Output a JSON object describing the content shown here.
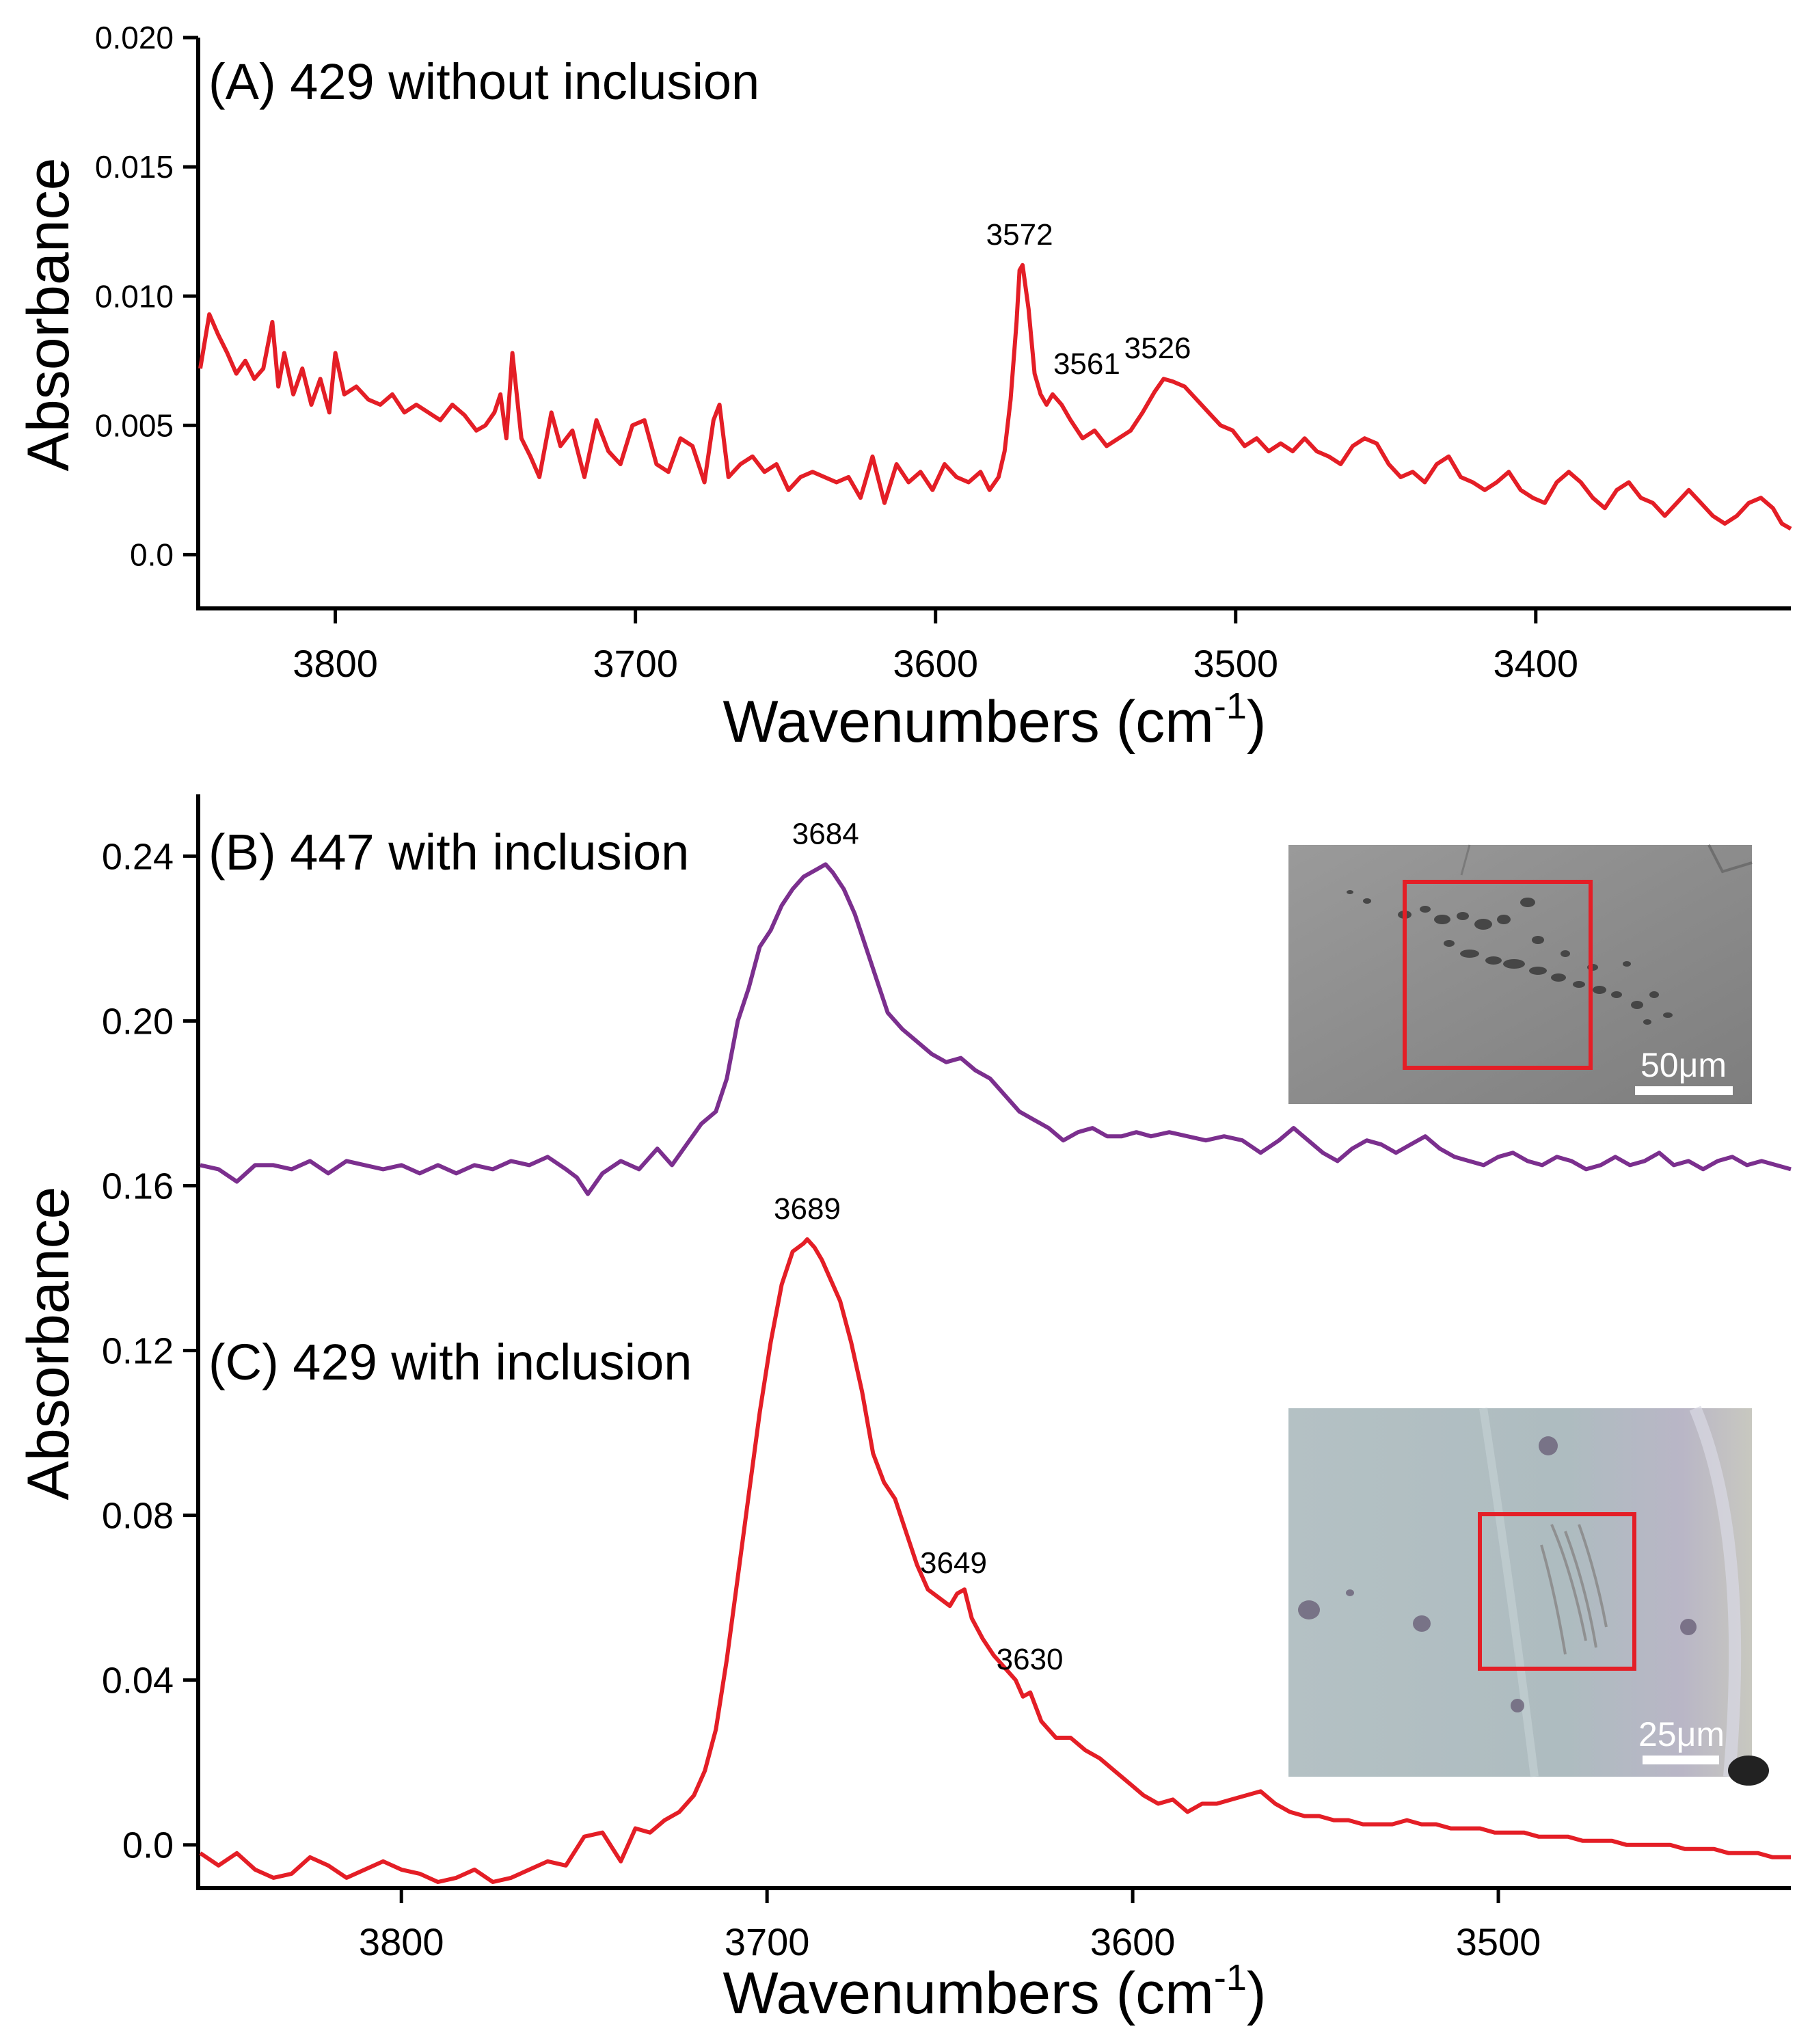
{
  "colors": {
    "red": "#e41e26",
    "purple": "#7b2f8e",
    "axis": "#000000",
    "inset_box": "#e41e26"
  },
  "chart_data": [
    {
      "type": "line",
      "panel": "A",
      "title": "(A) 429 without inclusion",
      "xlabel": "Wavenumbers (cm",
      "xlabel_sup": "-1",
      "xlabel_close": ")",
      "ylabel": "Absorbance",
      "xlim": [
        3845,
        3315
      ],
      "ylim": [
        -0.002,
        0.02
      ],
      "xticks": [
        3800,
        3700,
        3600,
        3500,
        3400
      ],
      "xtick_labels": [
        "3800",
        "3700",
        "3600",
        "3500",
        "3400"
      ],
      "yticks": [
        0,
        0.005,
        0.01,
        0.015,
        0.02
      ],
      "ytick_labels": [
        "0.0",
        "0.005",
        "0.010",
        "0.015",
        "0.020"
      ],
      "grid": false,
      "series": [
        {
          "color": "#e41e26",
          "x": [
            3845,
            3842,
            3839,
            3836,
            3833,
            3830,
            3827,
            3824,
            3821,
            3819,
            3817,
            3814,
            3811,
            3808,
            3805,
            3802,
            3800,
            3797,
            3793,
            3789,
            3785,
            3781,
            3777,
            3773,
            3769,
            3765,
            3761,
            3757,
            3753,
            3750,
            3747,
            3745,
            3743,
            3741,
            3738,
            3735,
            3732,
            3728,
            3725,
            3721,
            3717,
            3713,
            3709,
            3705,
            3701,
            3697,
            3693,
            3689,
            3685,
            3681,
            3677,
            3674,
            3672,
            3669,
            3665,
            3661,
            3657,
            3653,
            3649,
            3645,
            3641,
            3637,
            3633,
            3629,
            3625,
            3621,
            3617,
            3613,
            3609,
            3605,
            3601,
            3597,
            3593,
            3589,
            3585,
            3582,
            3579,
            3577,
            3575,
            3573,
            3572,
            3571,
            3569,
            3567,
            3565,
            3563,
            3561,
            3558,
            3555,
            3551,
            3547,
            3543,
            3539,
            3535,
            3531,
            3527,
            3524,
            3521,
            3517,
            3513,
            3509,
            3505,
            3501,
            3497,
            3493,
            3489,
            3485,
            3481,
            3477,
            3473,
            3469,
            3465,
            3461,
            3457,
            3453,
            3449,
            3445,
            3441,
            3437,
            3433,
            3429,
            3425,
            3421,
            3417,
            3413,
            3409,
            3405,
            3401,
            3397,
            3393,
            3389,
            3385,
            3381,
            3377,
            3373,
            3369,
            3365,
            3361,
            3357,
            3353,
            3349,
            3345,
            3341,
            3337,
            3333,
            3329,
            3325,
            3321,
            3318,
            3315
          ],
          "y": [
            0.0072,
            0.0093,
            0.0085,
            0.0078,
            0.007,
            0.0075,
            0.0068,
            0.0072,
            0.009,
            0.0065,
            0.0078,
            0.0062,
            0.0072,
            0.0058,
            0.0068,
            0.0055,
            0.0078,
            0.0062,
            0.0065,
            0.006,
            0.0058,
            0.0062,
            0.0055,
            0.0058,
            0.0055,
            0.0052,
            0.0058,
            0.0054,
            0.0048,
            0.005,
            0.0055,
            0.0062,
            0.0045,
            0.0078,
            0.0045,
            0.0038,
            0.003,
            0.0055,
            0.0042,
            0.0048,
            0.003,
            0.0052,
            0.004,
            0.0035,
            0.005,
            0.0052,
            0.0035,
            0.0032,
            0.0045,
            0.0042,
            0.0028,
            0.0052,
            0.0058,
            0.003,
            0.0035,
            0.0038,
            0.0032,
            0.0035,
            0.0025,
            0.003,
            0.0032,
            0.003,
            0.0028,
            0.003,
            0.0022,
            0.0038,
            0.002,
            0.0035,
            0.0028,
            0.0032,
            0.0025,
            0.0035,
            0.003,
            0.0028,
            0.0032,
            0.0025,
            0.003,
            0.004,
            0.006,
            0.009,
            0.011,
            0.0112,
            0.0095,
            0.007,
            0.0062,
            0.0058,
            0.0062,
            0.0058,
            0.0052,
            0.0045,
            0.0048,
            0.0042,
            0.0045,
            0.0048,
            0.0055,
            0.0063,
            0.0068,
            0.0067,
            0.0065,
            0.006,
            0.0055,
            0.005,
            0.0048,
            0.0042,
            0.0045,
            0.004,
            0.0043,
            0.004,
            0.0045,
            0.004,
            0.0038,
            0.0035,
            0.0042,
            0.0045,
            0.0043,
            0.0035,
            0.003,
            0.0032,
            0.0028,
            0.0035,
            0.0038,
            0.003,
            0.0028,
            0.0025,
            0.0028,
            0.0032,
            0.0025,
            0.0022,
            0.002,
            0.0028,
            0.0032,
            0.0028,
            0.0022,
            0.0018,
            0.0025,
            0.0028,
            0.0022,
            0.002,
            0.0015,
            0.002,
            0.0025,
            0.002,
            0.0015,
            0.0012,
            0.0015,
            0.002,
            0.0022,
            0.0018,
            0.0012,
            0.001
          ]
        }
      ],
      "annotations": [
        {
          "x": 3572,
          "y": 0.0112,
          "text": "3572"
        },
        {
          "x": 3561,
          "y": 0.0062,
          "text": "3561"
        },
        {
          "x": 3526,
          "y": 0.0068,
          "text": "3526"
        }
      ]
    },
    {
      "type": "line",
      "panel": "B/C",
      "xlabel": "Wavenumbers (cm",
      "xlabel_sup": "-1",
      "xlabel_close": ")",
      "ylabel": "Absorbance",
      "xlim": [
        3855,
        3420
      ],
      "ylim": [
        -0.01,
        0.255
      ],
      "xticks": [
        3800,
        3700,
        3600,
        3500
      ],
      "xtick_labels": [
        "3800",
        "3700",
        "3600",
        "3500"
      ],
      "yticks": [
        0,
        0.04,
        0.08,
        0.12,
        0.16,
        0.2,
        0.24
      ],
      "ytick_labels": [
        "0.0",
        "0.04",
        "0.08",
        "0.12",
        "0.16",
        "0.20",
        "0.24"
      ],
      "grid": false,
      "series": [
        {
          "name": "(B) 447 with inclusion",
          "color": "#7b2f8e",
          "x": [
            3855,
            3850,
            3845,
            3840,
            3835,
            3830,
            3825,
            3820,
            3815,
            3810,
            3805,
            3800,
            3795,
            3790,
            3785,
            3780,
            3775,
            3770,
            3765,
            3760,
            3755,
            3752,
            3749,
            3745,
            3740,
            3735,
            3730,
            3726,
            3722,
            3718,
            3714,
            3711,
            3708,
            3705,
            3702,
            3699,
            3696,
            3693,
            3690,
            3688,
            3686,
            3684,
            3682,
            3679,
            3676,
            3673,
            3670,
            3667,
            3663,
            3659,
            3655,
            3651,
            3647,
            3643,
            3639,
            3635,
            3631,
            3627,
            3623,
            3619,
            3615,
            3611,
            3607,
            3603,
            3599,
            3595,
            3590,
            3585,
            3580,
            3575,
            3570,
            3565,
            3560,
            3556,
            3552,
            3548,
            3544,
            3540,
            3536,
            3532,
            3528,
            3524,
            3520,
            3516,
            3512,
            3508,
            3504,
            3500,
            3496,
            3492,
            3488,
            3484,
            3480,
            3476,
            3472,
            3468,
            3464,
            3460,
            3456,
            3452,
            3448,
            3444,
            3440,
            3436,
            3432,
            3428,
            3424,
            3420
          ],
          "y": [
            0.165,
            0.164,
            0.161,
            0.165,
            0.165,
            0.164,
            0.166,
            0.163,
            0.166,
            0.165,
            0.164,
            0.165,
            0.163,
            0.165,
            0.163,
            0.165,
            0.164,
            0.166,
            0.165,
            0.167,
            0.164,
            0.162,
            0.158,
            0.163,
            0.166,
            0.164,
            0.169,
            0.165,
            0.17,
            0.175,
            0.178,
            0.186,
            0.2,
            0.208,
            0.218,
            0.222,
            0.228,
            0.232,
            0.235,
            0.236,
            0.237,
            0.238,
            0.236,
            0.232,
            0.226,
            0.218,
            0.21,
            0.202,
            0.198,
            0.195,
            0.192,
            0.19,
            0.191,
            0.188,
            0.186,
            0.182,
            0.178,
            0.176,
            0.174,
            0.171,
            0.173,
            0.174,
            0.172,
            0.172,
            0.173,
            0.172,
            0.173,
            0.172,
            0.171,
            0.172,
            0.171,
            0.168,
            0.171,
            0.174,
            0.171,
            0.168,
            0.166,
            0.169,
            0.171,
            0.17,
            0.168,
            0.17,
            0.172,
            0.169,
            0.167,
            0.166,
            0.165,
            0.167,
            0.168,
            0.166,
            0.165,
            0.167,
            0.166,
            0.164,
            0.165,
            0.167,
            0.165,
            0.166,
            0.168,
            0.165,
            0.166,
            0.164,
            0.166,
            0.167,
            0.165,
            0.166,
            0.165,
            0.164
          ]
        },
        {
          "name": "(C) 429 with inclusion",
          "color": "#e41e26",
          "x": [
            3855,
            3850,
            3845,
            3840,
            3835,
            3830,
            3825,
            3820,
            3815,
            3810,
            3805,
            3800,
            3795,
            3790,
            3785,
            3780,
            3775,
            3770,
            3765,
            3760,
            3755,
            3750,
            3745,
            3740,
            3736,
            3732,
            3728,
            3724,
            3720,
            3717,
            3714,
            3711,
            3708,
            3705,
            3702,
            3699,
            3696,
            3693,
            3690,
            3689,
            3687,
            3685,
            3683,
            3680,
            3677,
            3674,
            3671,
            3668,
            3665,
            3662,
            3659,
            3656,
            3653,
            3650,
            3648,
            3646,
            3644,
            3641,
            3638,
            3635,
            3632,
            3630,
            3628,
            3625,
            3621,
            3617,
            3613,
            3609,
            3605,
            3601,
            3597,
            3593,
            3589,
            3585,
            3581,
            3577,
            3573,
            3569,
            3565,
            3561,
            3557,
            3553,
            3549,
            3545,
            3541,
            3537,
            3533,
            3529,
            3525,
            3521,
            3517,
            3513,
            3509,
            3505,
            3501,
            3497,
            3493,
            3489,
            3485,
            3481,
            3477,
            3473,
            3469,
            3465,
            3461,
            3457,
            3453,
            3449,
            3445,
            3441,
            3437,
            3433,
            3429,
            3425,
            3420
          ],
          "y": [
            -0.002,
            -0.005,
            -0.002,
            -0.006,
            -0.008,
            -0.007,
            -0.003,
            -0.005,
            -0.008,
            -0.006,
            -0.004,
            -0.006,
            -0.007,
            -0.009,
            -0.008,
            -0.006,
            -0.009,
            -0.008,
            -0.006,
            -0.004,
            -0.005,
            0.002,
            0.003,
            -0.004,
            0.004,
            0.003,
            0.006,
            0.008,
            0.012,
            0.018,
            0.028,
            0.045,
            0.065,
            0.085,
            0.105,
            0.122,
            0.136,
            0.144,
            0.146,
            0.147,
            0.145,
            0.142,
            0.138,
            0.132,
            0.122,
            0.11,
            0.095,
            0.088,
            0.084,
            0.076,
            0.068,
            0.062,
            0.06,
            0.058,
            0.061,
            0.062,
            0.055,
            0.05,
            0.046,
            0.043,
            0.04,
            0.036,
            0.037,
            0.03,
            0.026,
            0.026,
            0.023,
            0.021,
            0.018,
            0.015,
            0.012,
            0.01,
            0.011,
            0.008,
            0.01,
            0.01,
            0.011,
            0.012,
            0.013,
            0.01,
            0.008,
            0.007,
            0.007,
            0.006,
            0.006,
            0.005,
            0.005,
            0.005,
            0.006,
            0.005,
            0.005,
            0.004,
            0.004,
            0.004,
            0.003,
            0.003,
            0.003,
            0.002,
            0.002,
            0.002,
            0.001,
            0.001,
            0.001,
            0.0,
            0.0,
            0.0,
            0.0,
            -0.001,
            -0.001,
            -0.001,
            -0.002,
            -0.002,
            -0.002,
            -0.003,
            -0.003
          ]
        }
      ],
      "annotations": [
        {
          "x": 3684,
          "y": 0.238,
          "text": "3684"
        },
        {
          "x": 3689,
          "y": 0.147,
          "text": "3689"
        },
        {
          "x": 3649,
          "y": 0.061,
          "text": "3649"
        },
        {
          "x": 3630,
          "y": 0.036,
          "text": "3630"
        }
      ],
      "insets": [
        {
          "name": "inclusion-447",
          "scale_label": "50μm"
        },
        {
          "name": "inclusion-429",
          "scale_label": "25μm"
        }
      ]
    }
  ]
}
